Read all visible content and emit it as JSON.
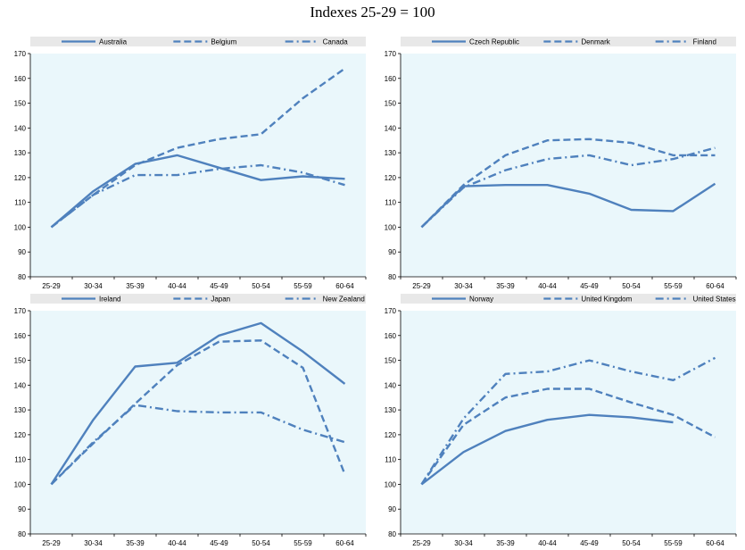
{
  "title": "Indexes 25-29 = 100",
  "colors": {
    "series": "#4F81BD",
    "plot_bg": "#EAF7FB",
    "legend_bg": "#E8E8E8"
  },
  "chart_data": [
    {
      "type": "line",
      "categories": [
        "25-29",
        "30-34",
        "35-39",
        "40-44",
        "45-49",
        "50-54",
        "55-59",
        "60-64"
      ],
      "ylim": [
        80,
        170
      ],
      "yticks": [
        "80",
        "90",
        "100",
        "110",
        "120",
        "130",
        "140",
        "150",
        "160",
        "170"
      ],
      "series": [
        {
          "name": "Australia",
          "style": "solid",
          "values": [
            100,
            114.5,
            125.5,
            129,
            124,
            119,
            120.5,
            119.5
          ]
        },
        {
          "name": "Belgium",
          "style": "dash",
          "values": [
            100,
            113,
            125,
            132,
            135.5,
            137.5,
            152,
            164
          ]
        },
        {
          "name": "Canada",
          "style": "dashdot",
          "values": [
            100,
            113,
            121,
            121,
            123.5,
            125,
            122,
            117
          ]
        }
      ]
    },
    {
      "type": "line",
      "categories": [
        "25-29",
        "30-34",
        "35-39",
        "40-44",
        "45-49",
        "50-54",
        "55-59",
        "60-64"
      ],
      "ylim": [
        80,
        170
      ],
      "yticks": [
        "80",
        "90",
        "100",
        "110",
        "120",
        "130",
        "140",
        "150",
        "160",
        "170"
      ],
      "series": [
        {
          "name": "Czech Republic",
          "style": "solid",
          "values": [
            100,
            116.5,
            117,
            117,
            113.5,
            107,
            106.5,
            117.5
          ]
        },
        {
          "name": "Denmark",
          "style": "dash",
          "values": [
            100,
            117,
            129,
            135,
            135.5,
            134,
            129,
            129
          ]
        },
        {
          "name": "Finland",
          "style": "dashdot",
          "values": [
            100,
            116,
            123,
            127.5,
            129,
            125,
            127.5,
            132
          ]
        }
      ]
    },
    {
      "type": "line",
      "categories": [
        "25-29",
        "30-34",
        "35-39",
        "40-44",
        "45-49",
        "50-54",
        "55-59",
        "60-64"
      ],
      "ylim": [
        80,
        170
      ],
      "yticks": [
        "80",
        "90",
        "100",
        "110",
        "120",
        "130",
        "140",
        "150",
        "160",
        "170"
      ],
      "series": [
        {
          "name": "Ireland",
          "style": "solid",
          "values": [
            100,
            126,
            147.5,
            149,
            160,
            165,
            153.5,
            140.5
          ]
        },
        {
          "name": "Japan",
          "style": "dash",
          "values": [
            100,
            116.5,
            132.5,
            148,
            157.5,
            158,
            147,
            104
          ]
        },
        {
          "name": "New Zealand",
          "style": "dashdot",
          "values": [
            100,
            117,
            132,
            129.5,
            129,
            129,
            122,
            117
          ]
        }
      ]
    },
    {
      "type": "line",
      "categories": [
        "25-29",
        "30-34",
        "35-39",
        "40-44",
        "45-49",
        "50-54",
        "55-59",
        "60-64"
      ],
      "ylim": [
        80,
        170
      ],
      "yticks": [
        "80",
        "90",
        "100",
        "110",
        "120",
        "130",
        "140",
        "150",
        "160",
        "170"
      ],
      "series": [
        {
          "name": "Norway",
          "style": "solid",
          "values": [
            100,
            113,
            121.5,
            126,
            128,
            127,
            125,
            null
          ]
        },
        {
          "name": "United Kingdom",
          "style": "dash",
          "values": [
            100,
            124,
            135,
            138.5,
            138.5,
            133,
            128,
            119
          ]
        },
        {
          "name": "United States",
          "style": "dashdot",
          "values": [
            100,
            126.5,
            144.5,
            145.5,
            150,
            145.5,
            142,
            151
          ]
        }
      ]
    }
  ]
}
